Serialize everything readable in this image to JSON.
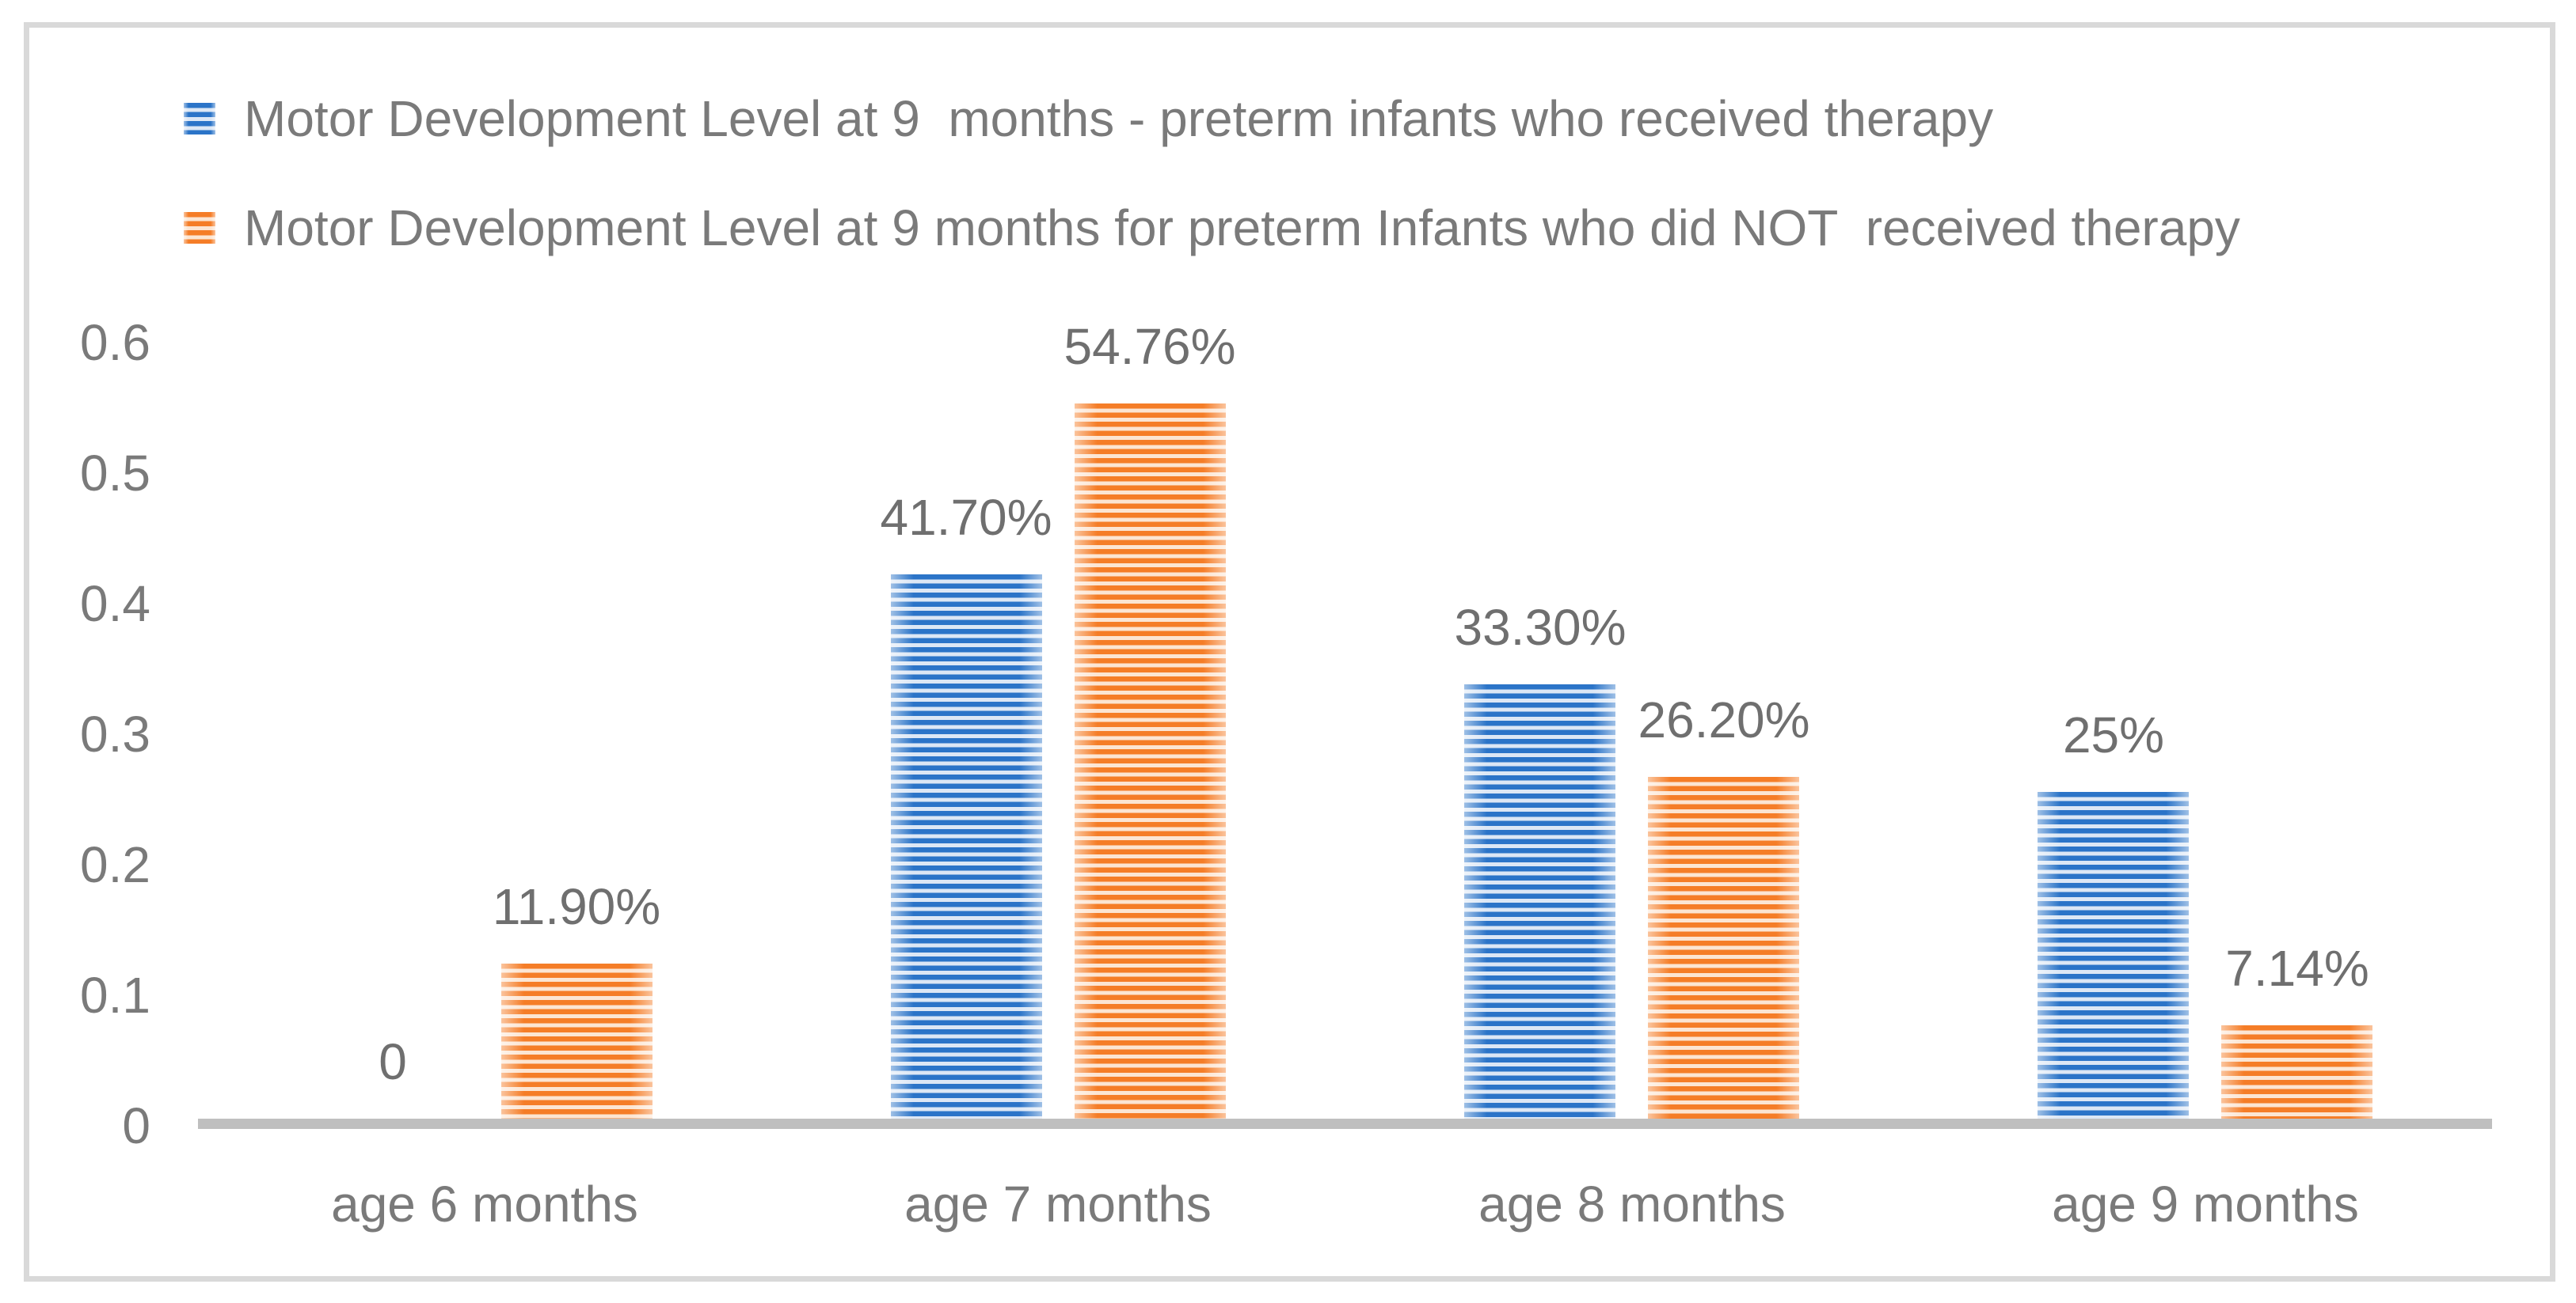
{
  "chart_data": {
    "type": "bar",
    "title": "",
    "categories": [
      "age 6 months",
      "age 7 months",
      "age 8 months",
      "age 9 months"
    ],
    "series": [
      {
        "name": "Motor Development Level at 9  months - preterm infants who received therapy",
        "color": "#2b74c8",
        "color_light": "#dce7f5",
        "values": [
          0,
          0.417,
          0.333,
          0.25
        ],
        "labels": [
          "0",
          "41.70%",
          "33.30%",
          "25%"
        ]
      },
      {
        "name": "Motor Development Level at 9 months for preterm Infants who did NOT  received therapy",
        "color": "#f57d27",
        "color_light": "#fce5d2",
        "values": [
          0.119,
          0.5476,
          0.262,
          0.0714
        ],
        "labels": [
          "11.90%",
          "54.76%",
          "26.20%",
          "7.14%"
        ]
      }
    ],
    "y_axis": {
      "tick_labels": [
        "0.6",
        "0.5",
        "0.4",
        "0.3",
        "0.2",
        "0.1",
        "0"
      ],
      "tick_values": [
        0.6,
        0.5,
        0.4,
        0.3,
        0.2,
        0.1,
        0
      ],
      "min": 0,
      "max": 0.6,
      "gridlines": false
    },
    "legend_position": "top-left",
    "pattern": "light-horizontal-stripes",
    "colors": {
      "axis_line": "#bfbfbf",
      "frame_border": "#d9d9d9",
      "text": "#7a7a7a",
      "data_label_text": "#6f6f6f"
    }
  }
}
